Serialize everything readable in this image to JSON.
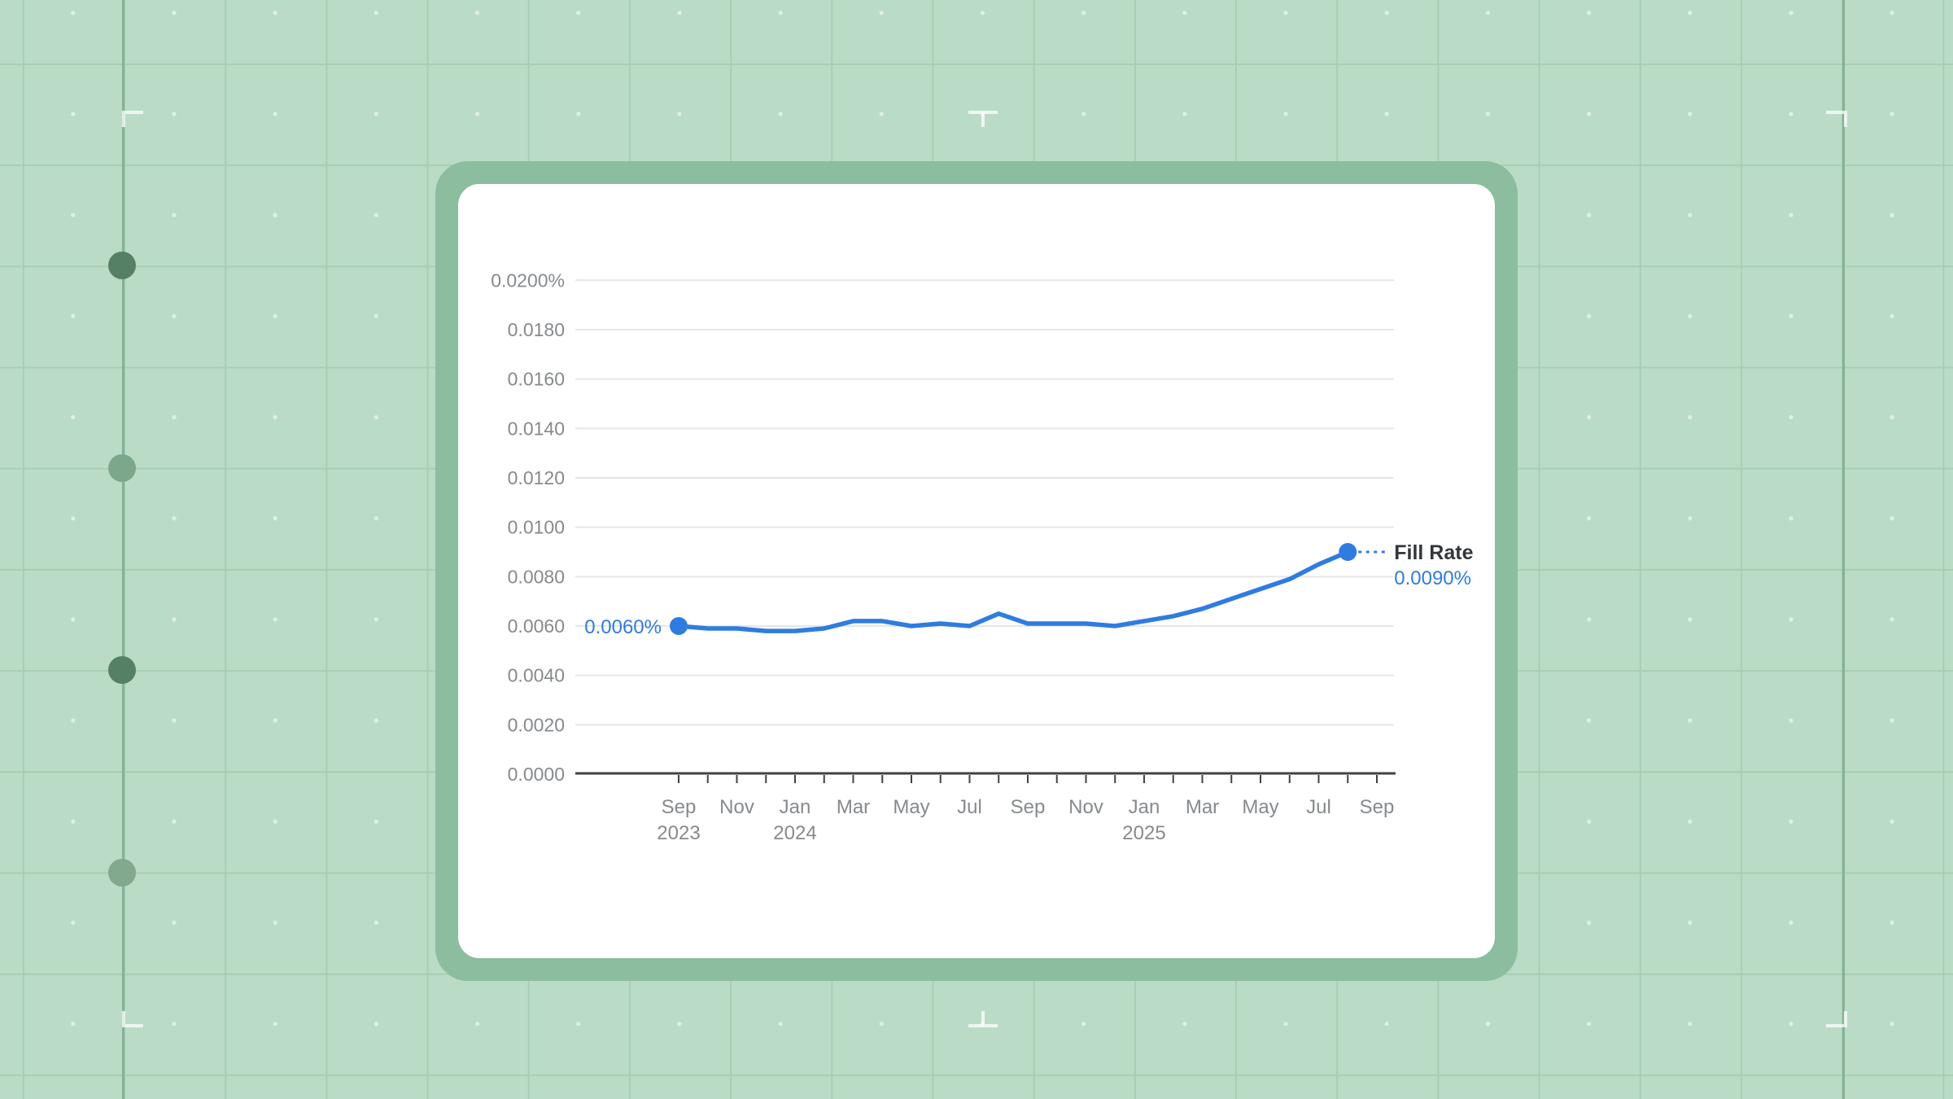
{
  "scene": {
    "background_color": "#badcc7",
    "grid_color": "#a6ceb4",
    "accent_line_color": "#82b296",
    "mark_color": "rgba(255,255,255,0.75)",
    "side_dots": [
      {
        "tone": "dark",
        "color": "#568066"
      },
      {
        "tone": "light",
        "color": "#7ca78b"
      },
      {
        "tone": "dark",
        "color": "#568066"
      },
      {
        "tone": "light",
        "color": "#82a88e"
      }
    ]
  },
  "card": {
    "frame_color": "#8bbd9e",
    "background_color": "#ffffff"
  },
  "chart_data": {
    "type": "line",
    "title": "",
    "legend_position": "line-end",
    "grid": true,
    "series": [
      {
        "name": "Fill Rate",
        "color": "#2f7ce0",
        "unit": "%",
        "x": [
          "Sep 2023",
          "Oct 2023",
          "Nov 2023",
          "Dec 2023",
          "Jan 2024",
          "Feb 2024",
          "Mar 2024",
          "Apr 2024",
          "May 2024",
          "Jun 2024",
          "Jul 2024",
          "Aug 2024",
          "Sep 2024",
          "Oct 2024",
          "Nov 2024",
          "Dec 2024",
          "Jan 2025",
          "Feb 2025",
          "Mar 2025",
          "Apr 2025",
          "May 2025",
          "Jun 2025",
          "Jul 2025",
          "Aug 2025"
        ],
        "values": [
          0.006,
          0.0059,
          0.0059,
          0.0058,
          0.0058,
          0.0059,
          0.0062,
          0.0062,
          0.006,
          0.0061,
          0.006,
          0.0065,
          0.0061,
          0.0061,
          0.0061,
          0.006,
          0.0062,
          0.0064,
          0.0067,
          0.0071,
          0.0075,
          0.0079,
          0.0085,
          0.009
        ]
      }
    ],
    "y_axis": {
      "tick_labels": [
        "0.0200%",
        "0.0180",
        "0.0160",
        "0.0140",
        "0.0120",
        "0.0100",
        "0.0080",
        "0.0060",
        "0.0040",
        "0.0020",
        "0.0000"
      ],
      "range_percent": [
        0.0,
        0.02
      ],
      "label_color": "#868a8d",
      "gridline_color": "#e5e6e7"
    },
    "x_axis": {
      "tick_every_months": 1,
      "label_every_months": 2,
      "tick_labels": [
        {
          "month": "Sep",
          "year": "2023"
        },
        {
          "month": "Nov"
        },
        {
          "month": "Jan",
          "year": "2024"
        },
        {
          "month": "Mar"
        },
        {
          "month": "May"
        },
        {
          "month": "Jul"
        },
        {
          "month": "Sep"
        },
        {
          "month": "Nov"
        },
        {
          "month": "Jan",
          "year": "2025"
        },
        {
          "month": "Mar"
        },
        {
          "month": "May"
        },
        {
          "month": "Jul"
        },
        {
          "month": "Sep"
        }
      ],
      "label_color": "#868a8d",
      "axis_color": "#404244"
    },
    "start_point_label": "0.0060%",
    "end_point_label": {
      "name": "Fill Rate",
      "value": "0.0090%",
      "name_color": "#333639"
    }
  }
}
